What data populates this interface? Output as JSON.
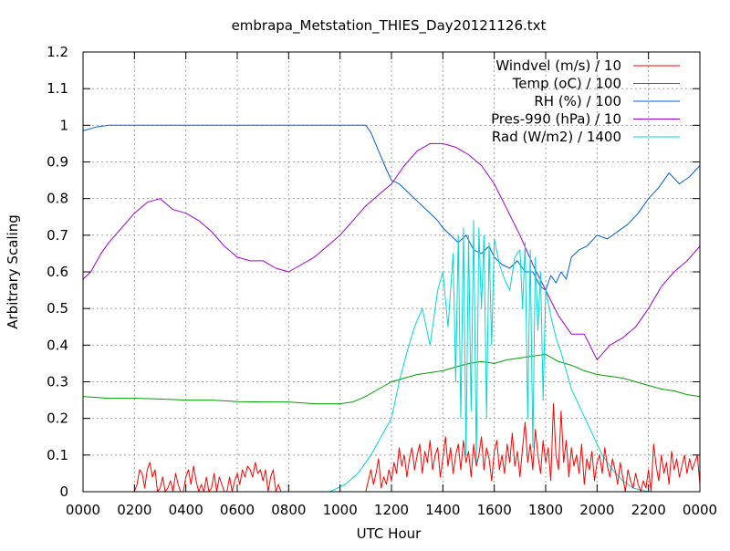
{
  "chart_data": {
    "type": "line",
    "title": "embrapa_Metstation_THIES_Day20121126.txt",
    "xlabel": "UTC Hour",
    "ylabel": "Arbitrary Scaling",
    "xlim": [
      0,
      24
    ],
    "ylim": [
      0,
      1.2
    ],
    "grid": true,
    "legend_position": "top-right",
    "x_ticks": [
      {
        "value": 0,
        "label": "0000"
      },
      {
        "value": 2,
        "label": "0200"
      },
      {
        "value": 4,
        "label": "0400"
      },
      {
        "value": 6,
        "label": "0600"
      },
      {
        "value": 8,
        "label": "0800"
      },
      {
        "value": 10,
        "label": "1000"
      },
      {
        "value": 12,
        "label": "1200"
      },
      {
        "value": 14,
        "label": "1400"
      },
      {
        "value": 16,
        "label": "1600"
      },
      {
        "value": 18,
        "label": "1800"
      },
      {
        "value": 20,
        "label": "2000"
      },
      {
        "value": 22,
        "label": "2200"
      },
      {
        "value": 24,
        "label": "0000"
      }
    ],
    "y_ticks": [
      {
        "value": 0,
        "label": "0"
      },
      {
        "value": 0.1,
        "label": "0.1"
      },
      {
        "value": 0.2,
        "label": "0.2"
      },
      {
        "value": 0.3,
        "label": "0.3"
      },
      {
        "value": 0.4,
        "label": "0.4"
      },
      {
        "value": 0.5,
        "label": "0.5"
      },
      {
        "value": 0.6,
        "label": "0.6"
      },
      {
        "value": 0.7,
        "label": "0.7"
      },
      {
        "value": 0.8,
        "label": "0.8"
      },
      {
        "value": 0.9,
        "label": "0.9"
      },
      {
        "value": 1.0,
        "label": "1"
      },
      {
        "value": 1.1,
        "label": "1.1"
      },
      {
        "value": 1.2,
        "label": "1.2"
      }
    ],
    "series": [
      {
        "name": "Windvel (m/s) / 10",
        "color": "#ff0000",
        "x": [
          0,
          2.0,
          2.1,
          2.2,
          2.3,
          2.4,
          2.5,
          2.6,
          2.7,
          2.8,
          2.9,
          3.0,
          3.1,
          3.2,
          3.3,
          3.4,
          3.5,
          3.6,
          3.7,
          3.8,
          3.9,
          4.0,
          4.1,
          4.2,
          4.3,
          4.4,
          4.5,
          4.6,
          4.7,
          4.8,
          4.9,
          5.0,
          5.1,
          5.2,
          5.3,
          5.4,
          5.5,
          5.6,
          5.7,
          5.8,
          5.9,
          6.0,
          6.1,
          6.2,
          6.3,
          6.4,
          6.5,
          6.6,
          6.7,
          6.8,
          6.9,
          7.0,
          7.1,
          7.2,
          7.3,
          7.4,
          7.5,
          7.6,
          7.7,
          7.8,
          7.9,
          8.0,
          10.0,
          10.5,
          10.8,
          11.0,
          11.1,
          11.2,
          11.3,
          11.4,
          11.5,
          11.6,
          11.7,
          11.8,
          11.9,
          12.0,
          12.1,
          12.2,
          12.3,
          12.4,
          12.5,
          12.6,
          12.7,
          12.8,
          12.9,
          13.0,
          13.1,
          13.2,
          13.3,
          13.4,
          13.5,
          13.6,
          13.7,
          13.8,
          13.9,
          14.0,
          14.1,
          14.2,
          14.3,
          14.4,
          14.5,
          14.6,
          14.7,
          14.8,
          14.9,
          15.0,
          15.1,
          15.2,
          15.3,
          15.4,
          15.5,
          15.6,
          15.7,
          15.8,
          15.9,
          16.0,
          16.1,
          16.2,
          16.3,
          16.4,
          16.5,
          16.6,
          16.7,
          16.8,
          16.9,
          17.0,
          17.1,
          17.2,
          17.3,
          17.4,
          17.5,
          17.6,
          17.7,
          17.8,
          17.9,
          18.0,
          18.1,
          18.2,
          18.3,
          18.4,
          18.5,
          18.6,
          18.7,
          18.8,
          18.9,
          19.0,
          19.1,
          19.2,
          19.3,
          19.4,
          19.5,
          19.6,
          19.7,
          19.8,
          19.9,
          20.0,
          20.1,
          20.2,
          20.3,
          20.4,
          20.5,
          20.6,
          20.7,
          20.8,
          20.9,
          21.0,
          21.1,
          21.2,
          21.3,
          21.4,
          21.5,
          21.6,
          21.7,
          21.8,
          21.9,
          22.0,
          22.1,
          22.2,
          22.3,
          22.4,
          22.5,
          22.6,
          22.7,
          22.8,
          22.9,
          23.0,
          23.1,
          23.2,
          23.3,
          23.4,
          23.5,
          23.6,
          23.7,
          23.8,
          23.9,
          24.0
        ],
        "values": [
          0,
          0,
          0.02,
          0.06,
          0.05,
          0.01,
          0.06,
          0.08,
          0.04,
          0.06,
          0.0,
          0.01,
          0.04,
          0.0,
          0.01,
          0.03,
          0.0,
          0.05,
          0.02,
          0.0,
          0.0,
          0.04,
          0.06,
          0.02,
          0.07,
          0.03,
          0.0,
          0.02,
          0.0,
          0.04,
          0.0,
          0.01,
          0.05,
          0.0,
          0.04,
          0.02,
          0.0,
          0.0,
          0.04,
          0.0,
          0.03,
          0.05,
          0.02,
          0.06,
          0.04,
          0.07,
          0.06,
          0.04,
          0.08,
          0.05,
          0.06,
          0.03,
          0.06,
          0.0,
          0.04,
          0.06,
          0.0,
          0.02,
          0.0,
          0.0,
          0.0,
          0.0,
          0.0,
          0.0,
          0.0,
          0.0,
          0.03,
          0.06,
          0.02,
          0.05,
          0.09,
          0.01,
          0.04,
          0.02,
          0.06,
          0.03,
          0.08,
          0.05,
          0.12,
          0.07,
          0.1,
          0.04,
          0.09,
          0.12,
          0.06,
          0.1,
          0.13,
          0.05,
          0.11,
          0.08,
          0.14,
          0.06,
          0.1,
          0.12,
          0.04,
          0.09,
          0.15,
          0.07,
          0.12,
          0.05,
          0.1,
          0.13,
          0.06,
          0.14,
          0.08,
          0.11,
          0.04,
          0.13,
          0.07,
          0.1,
          0.15,
          0.06,
          0.12,
          0.09,
          0.03,
          0.11,
          0.14,
          0.06,
          0.1,
          0.05,
          0.13,
          0.08,
          0.16,
          0.07,
          0.11,
          0.04,
          0.12,
          0.19,
          0.08,
          0.13,
          0.06,
          0.17,
          0.1,
          0.05,
          0.14,
          0.08,
          0.12,
          0.03,
          0.24,
          0.1,
          0.06,
          0.22,
          0.08,
          0.14,
          0.04,
          0.12,
          0.07,
          0.1,
          0.05,
          0.13,
          0.02,
          0.09,
          0.06,
          0.11,
          0.03,
          0.08,
          0.1,
          0.05,
          0.12,
          0.07,
          0.04,
          0.09,
          0.06,
          0.02,
          0.08,
          0.04,
          0.0,
          0.06,
          0.03,
          0.01,
          0.05,
          0.02,
          0.0,
          0.03,
          0.01,
          0.06,
          0.0,
          0.13,
          0.07,
          0.03,
          0.1,
          0.05,
          0.08,
          0.02,
          0.11,
          0.06,
          0.09,
          0.04,
          0.07,
          0.1,
          0.05,
          0.09,
          0.06,
          0.08,
          0.1,
          0.02
        ]
      },
      {
        "name": "Temp (oC) / 100",
        "color": "#00a000",
        "x": [
          0,
          1,
          2,
          3,
          4,
          5,
          6,
          7,
          8,
          9,
          10,
          10.5,
          11,
          11.5,
          12,
          12.5,
          13,
          13.5,
          14,
          14.5,
          15,
          15.5,
          16,
          16.5,
          17,
          17.5,
          18,
          18.5,
          19,
          19.5,
          20,
          20.5,
          21,
          21.5,
          22,
          22.5,
          23,
          23.5,
          24
        ],
        "values": [
          0.26,
          0.255,
          0.255,
          0.253,
          0.25,
          0.25,
          0.246,
          0.245,
          0.245,
          0.24,
          0.24,
          0.245,
          0.26,
          0.28,
          0.3,
          0.31,
          0.32,
          0.325,
          0.33,
          0.34,
          0.35,
          0.355,
          0.35,
          0.36,
          0.365,
          0.37,
          0.375,
          0.355,
          0.345,
          0.33,
          0.32,
          0.315,
          0.31,
          0.3,
          0.29,
          0.28,
          0.275,
          0.265,
          0.26
        ]
      },
      {
        "name": "RH (%) / 100",
        "color": "#0060e0",
        "x": [
          0,
          0.5,
          1,
          2,
          4,
          6,
          8,
          10,
          11,
          11.2,
          11.5,
          11.8,
          12,
          12.3,
          12.6,
          12.9,
          13.2,
          13.5,
          13.8,
          14,
          14.3,
          14.6,
          14.9,
          15.2,
          15.5,
          15.8,
          16,
          16.3,
          16.6,
          16.9,
          17.2,
          17.5,
          17.8,
          18,
          18.2,
          18.4,
          18.6,
          18.8,
          19,
          19.3,
          19.6,
          20,
          20.4,
          20.8,
          21.2,
          21.6,
          22,
          22.4,
          22.8,
          23.2,
          23.6,
          24
        ],
        "values": [
          0.985,
          0.995,
          1.0,
          1.0,
          1.0,
          1.0,
          1.0,
          1.0,
          1.0,
          0.98,
          0.93,
          0.88,
          0.85,
          0.84,
          0.82,
          0.8,
          0.78,
          0.76,
          0.74,
          0.72,
          0.7,
          0.68,
          0.7,
          0.66,
          0.65,
          0.67,
          0.64,
          0.62,
          0.61,
          0.63,
          0.6,
          0.6,
          0.56,
          0.55,
          0.59,
          0.57,
          0.6,
          0.58,
          0.64,
          0.66,
          0.67,
          0.7,
          0.69,
          0.71,
          0.73,
          0.76,
          0.8,
          0.83,
          0.87,
          0.84,
          0.86,
          0.89
        ]
      },
      {
        "name": "Pres-990 (hPa) / 10",
        "color": "#a000d0",
        "x": [
          0,
          0.3,
          0.7,
          1,
          1.5,
          2,
          2.5,
          3,
          3.5,
          4,
          4.5,
          5,
          5.5,
          6,
          6.5,
          7,
          7.5,
          8,
          8.5,
          9,
          9.5,
          10,
          10.5,
          11,
          11.5,
          12,
          12.5,
          13,
          13.5,
          14,
          14.5,
          15,
          15.5,
          16,
          16.5,
          17,
          17.5,
          18,
          18.5,
          19,
          19.5,
          20,
          20.5,
          21,
          21.5,
          22,
          22.5,
          23,
          23.5,
          24
        ],
        "values": [
          0.58,
          0.6,
          0.65,
          0.68,
          0.72,
          0.76,
          0.79,
          0.8,
          0.77,
          0.76,
          0.74,
          0.71,
          0.67,
          0.64,
          0.63,
          0.63,
          0.61,
          0.6,
          0.62,
          0.64,
          0.67,
          0.7,
          0.74,
          0.78,
          0.81,
          0.84,
          0.89,
          0.93,
          0.95,
          0.95,
          0.94,
          0.92,
          0.89,
          0.84,
          0.77,
          0.7,
          0.62,
          0.55,
          0.48,
          0.43,
          0.43,
          0.36,
          0.4,
          0.42,
          0.45,
          0.5,
          0.56,
          0.6,
          0.63,
          0.67
        ]
      },
      {
        "name": "Rad (W/m2) / 1400",
        "color": "#00d8d8",
        "x": [
          0,
          9.6,
          10.2,
          10.7,
          11.2,
          11.6,
          12,
          12.3,
          12.6,
          12.9,
          13.2,
          13.5,
          13.8,
          14,
          14.2,
          14.4,
          14.5,
          14.6,
          14.7,
          14.8,
          14.9,
          15.0,
          15.1,
          15.2,
          15.3,
          15.4,
          15.5,
          15.6,
          15.7,
          15.8,
          15.9,
          16.0,
          16.2,
          16.4,
          16.6,
          16.8,
          17.0,
          17.1,
          17.2,
          17.3,
          17.4,
          17.5,
          17.6,
          17.7,
          17.8,
          17.9,
          18.0,
          18.2,
          18.4,
          18.6,
          18.8,
          19.0,
          19.4,
          19.8,
          20.2,
          20.6,
          21.0,
          21.4,
          22.0,
          24
        ],
        "values": [
          0.0,
          0.0,
          0.02,
          0.05,
          0.1,
          0.15,
          0.2,
          0.3,
          0.38,
          0.45,
          0.5,
          0.4,
          0.55,
          0.6,
          0.45,
          0.65,
          0.3,
          0.7,
          0.2,
          0.72,
          0.1,
          0.7,
          0.22,
          0.74,
          0.08,
          0.72,
          0.5,
          0.7,
          0.2,
          0.68,
          0.4,
          0.69,
          0.62,
          0.58,
          0.55,
          0.64,
          0.66,
          0.5,
          0.68,
          0.2,
          0.66,
          0.12,
          0.64,
          0.44,
          0.6,
          0.25,
          0.55,
          0.48,
          0.42,
          0.38,
          0.33,
          0.28,
          0.22,
          0.16,
          0.1,
          0.06,
          0.03,
          0.01,
          0.0,
          0.0
        ]
      }
    ]
  }
}
